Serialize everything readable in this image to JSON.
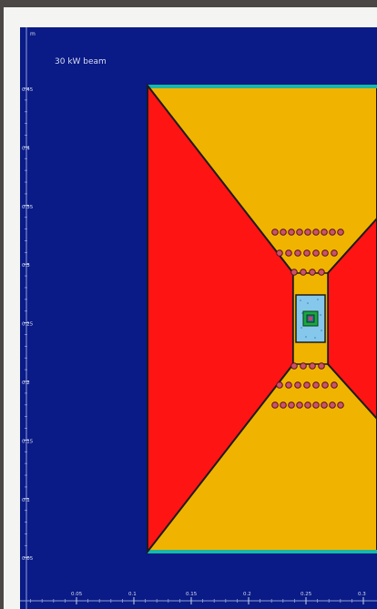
{
  "plot": {
    "title": "30 kW beam",
    "units_label": "m",
    "y_ticks": [
      "0.45",
      "0.4",
      "0.35",
      "0.3",
      "0.25",
      "0.2",
      "0.15",
      "0.1",
      "0.05"
    ],
    "x_ticks": [
      "0.05",
      "0.1",
      "0.15",
      "0.2",
      "0.25",
      "0.3"
    ]
  },
  "colors": {
    "background": "#0a1a86",
    "shielding": "#f0b400",
    "void": "#ff1414",
    "center": "#86c8ec",
    "outline": "#1b1b1b",
    "dots": "#c8546a",
    "target_green": "#1aa844"
  }
}
